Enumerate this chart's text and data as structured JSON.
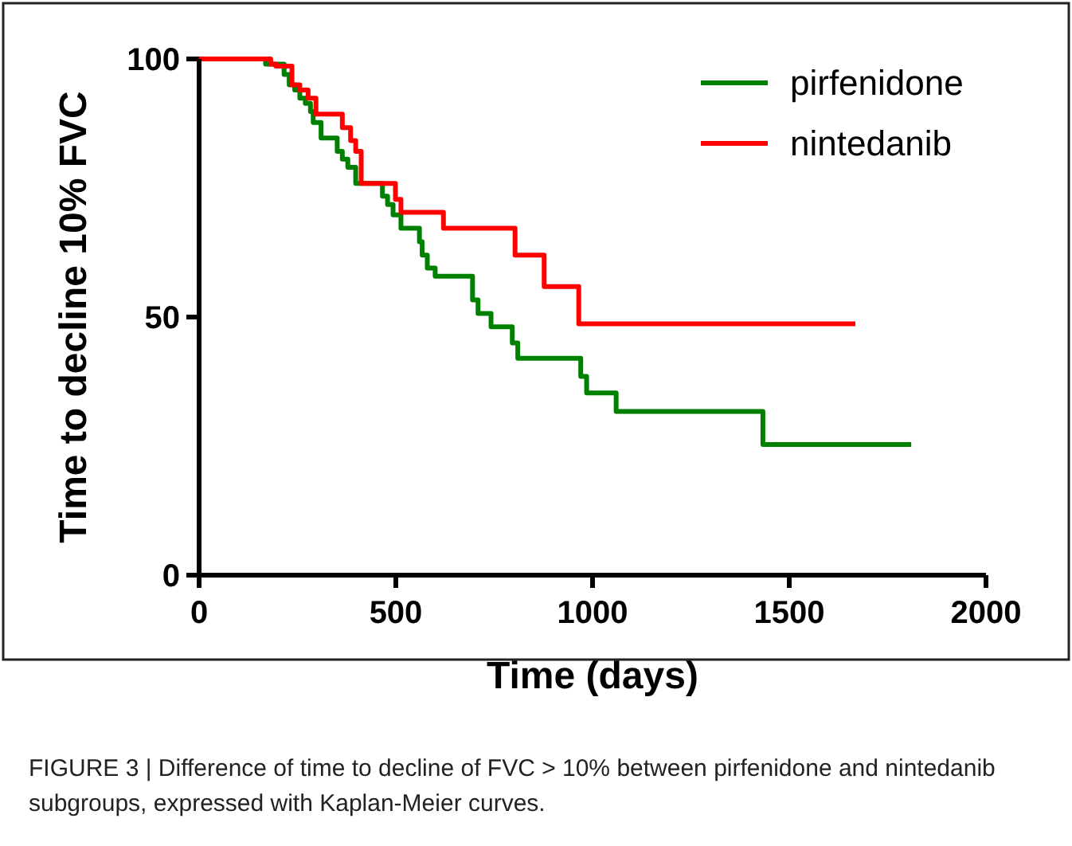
{
  "chart_data": {
    "type": "step",
    "xlabel": "Time (days)",
    "ylabel": "Time to decline 10% FVC",
    "xlim": [
      0,
      2000
    ],
    "xticks": [
      0,
      500,
      1000,
      1500,
      2000
    ],
    "ylim": [
      0,
      100
    ],
    "yticks": [
      0,
      50,
      100
    ],
    "grid": false,
    "legend": "top right",
    "series": [
      {
        "name": "pirfenidone",
        "color": "#008000",
        "x": [
          0,
          169,
          216,
          229,
          243,
          256,
          270,
          283,
          290,
          310,
          351,
          364,
          378,
          398,
          466,
          479,
          493,
          513,
          560,
          567,
          580,
          600,
          695,
          709,
          742,
          796,
          810,
          970,
          985,
          1060,
          1433,
          1810
        ],
        "values": [
          100,
          99,
          97,
          95,
          94,
          92.4,
          91.4,
          89.8,
          87.7,
          84.7,
          82.1,
          80.6,
          79,
          75.9,
          73.4,
          71.8,
          69.8,
          67.2,
          64.6,
          62,
          59.5,
          57.9,
          53.3,
          50.7,
          48.1,
          45,
          42,
          38.5,
          35.3,
          31.7,
          25.3,
          25.3
        ]
      },
      {
        "name": "nintedanib",
        "color": "#ff0000",
        "x": [
          0,
          182,
          195,
          236,
          256,
          277,
          297,
          364,
          385,
          398,
          412,
          499,
          513,
          621,
          803,
          877,
          965,
          1668
        ],
        "values": [
          100,
          99,
          98.6,
          95,
          94,
          92.4,
          89.3,
          86.7,
          84.2,
          82.1,
          75.9,
          72.8,
          70.3,
          67.2,
          62,
          55.9,
          48.7,
          48.7
        ]
      }
    ],
    "annotations": [
      "FIGURE 3 | Difference of time to decline of FVC > 10% between pirfenidone and nintedanib subgroups, expressed with Kaplan-Meier curves."
    ]
  }
}
